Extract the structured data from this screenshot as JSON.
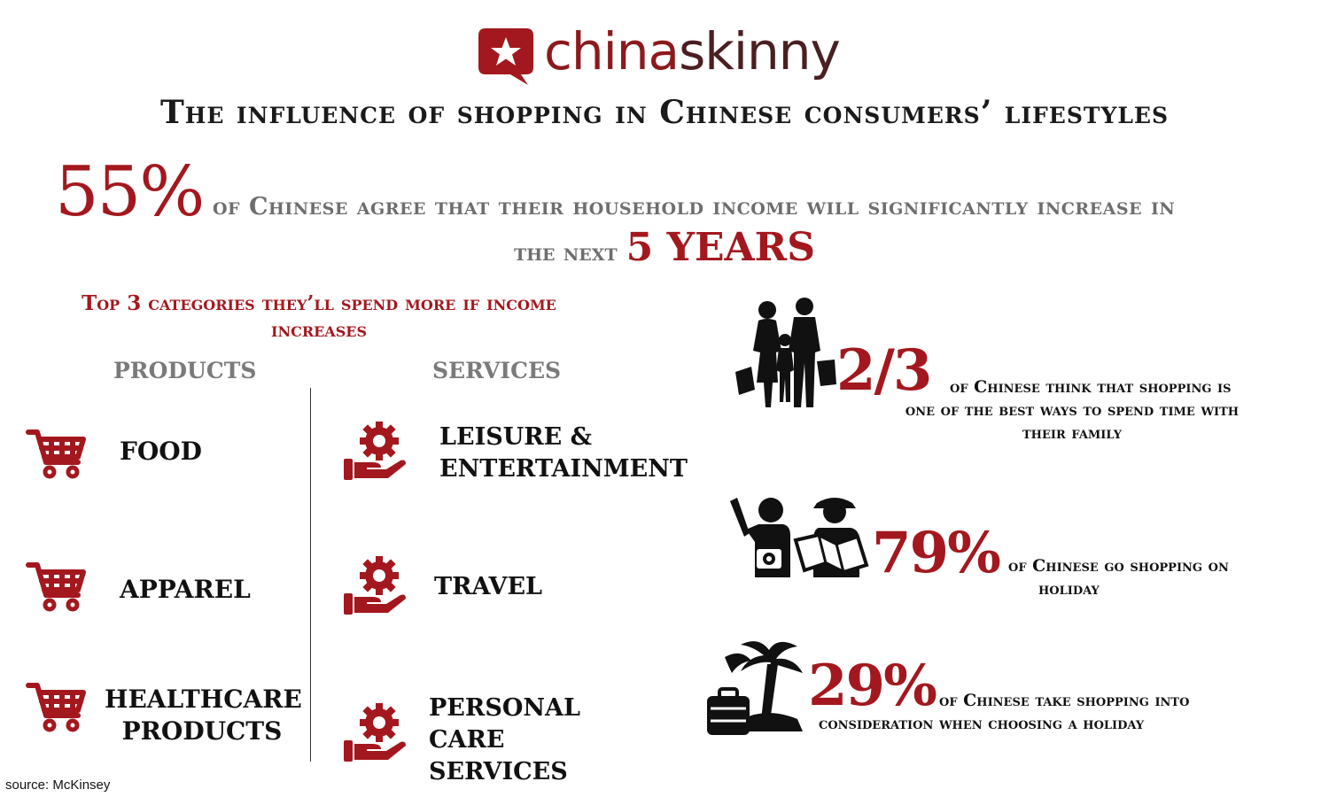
{
  "brand": {
    "name_part1": "china",
    "name_part2": "skinny",
    "colors": {
      "primary": "#a3181e",
      "dark": "#4a1f22"
    },
    "icon": "speech-bubble-star-icon"
  },
  "title": "The influence of shopping in Chinese consumers’ lifestyles",
  "headline": {
    "value": "55%",
    "text_line1": "of Chinese agree that their household income will significantly increase in",
    "text_line2": "the next",
    "highlight": "5 YEARS"
  },
  "categories": {
    "title": "Top 3 categories they’ll spend more if income increases",
    "products": {
      "header": "PRODUCTS",
      "icon": "shopping-cart-icon",
      "items": [
        "FOOD",
        "APPAREL",
        "HEALTHCARE PRODUCTS"
      ]
    },
    "services": {
      "header": "SERVICES",
      "icon": "hand-gear-icon",
      "items": [
        "LEISURE & ENTERTAINMENT",
        "TRAVEL",
        "PERSONAL CARE SERVICES"
      ]
    }
  },
  "stats": [
    {
      "value": "2/3",
      "icon": "family-shopping-icon",
      "line1": "of Chinese think that shopping is",
      "line2": "one of the best ways to spend time with",
      "line3": "their family"
    },
    {
      "value": "79%",
      "icon": "tourists-icon",
      "line1": "of Chinese go shopping on",
      "line2": "holiday"
    },
    {
      "value": "29%",
      "icon": "palm-tree-suitcase-icon",
      "line1": "of Chinese take shopping into",
      "line2": "consideration when choosing a holiday"
    }
  ],
  "source": "source: McKinsey"
}
